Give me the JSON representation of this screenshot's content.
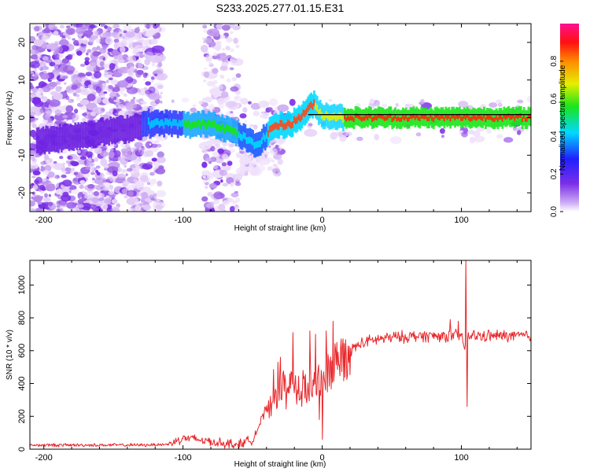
{
  "title": "S233.2025.277.01.15.E31",
  "colors": {
    "snr_line": "#e8262a",
    "ridge_line": "#000000",
    "background": "#ffffff"
  },
  "chart_data": [
    {
      "id": "spectrogram",
      "type": "heatmap",
      "title": "S233.2025.277.01.15.E31",
      "xlabel": "Height of straight line (km)",
      "ylabel": "Frequency (Hz)",
      "xlim": [
        -210,
        150
      ],
      "ylim": [
        -25,
        25
      ],
      "xticks": [
        -200,
        -100,
        0,
        100
      ],
      "xtick_labels": [
        "-200",
        "-100",
        "0",
        "100"
      ],
      "yticks": [
        -20,
        -10,
        0,
        10,
        20
      ],
      "ytick_labels": [
        "-20",
        "-10",
        "0",
        "10",
        "20"
      ],
      "colorbar": {
        "label": "Normalized spectral amplitude",
        "range": [
          0,
          1
        ],
        "ticks": [
          0,
          0.2,
          0.4,
          0.6,
          0.8
        ],
        "tick_labels": [
          "0.0",
          "0.2",
          "0.4",
          "0.6",
          "0.8"
        ],
        "colormap": "rainbow (white-violet-blue-cyan-green-yellow-red-magenta)"
      },
      "ridge": {
        "x": [
          -200,
          -180,
          -160,
          -140,
          -125,
          -110,
          -95,
          -80,
          -65,
          -55,
          -48,
          -42,
          -35,
          -28,
          -22,
          -16,
          -10,
          -6,
          -3,
          0,
          5,
          10,
          15,
          25,
          50,
          80,
          95,
          100,
          105,
          120,
          150
        ],
        "y": [
          -6,
          -5,
          -4,
          -3,
          -1.5,
          -1.5,
          -2,
          -1.5,
          -3.5,
          -5.5,
          -7.5,
          -5.5,
          -2.2,
          -2,
          -1.5,
          0,
          2.5,
          3.5,
          2,
          0.5,
          0.5,
          0.3,
          0,
          0,
          0,
          0,
          0,
          0,
          0,
          0,
          0
        ]
      },
      "reference_line": {
        "x_from": -10,
        "x_to": 150,
        "y": 0.8
      }
    },
    {
      "id": "snr",
      "type": "line",
      "xlabel": "Height of straight line (km)",
      "ylabel": "SNR (10 * v/v)",
      "xlim": [
        -210,
        150
      ],
      "ylim": [
        0,
        1150
      ],
      "xticks": [
        -200,
        -100,
        0,
        100
      ],
      "xtick_labels": [
        "-200",
        "-100",
        "0",
        "100"
      ],
      "yticks": [
        0,
        200,
        400,
        600,
        800,
        1000
      ],
      "ytick_labels": [
        "0",
        "200",
        "400",
        "600",
        "800",
        "1000"
      ],
      "series": [
        {
          "name": "SNR",
          "x": [
            -210,
            -180,
            -150,
            -130,
            -110,
            -100,
            -90,
            -75,
            -60,
            -50,
            -45,
            -40,
            -35,
            -30,
            -25,
            -22,
            -20,
            -15,
            -10,
            -5,
            0,
            5,
            10,
            15,
            20,
            25,
            30,
            40,
            50,
            60,
            70,
            80,
            90,
            95,
            100,
            103,
            105,
            110,
            120,
            130,
            140,
            150
          ],
          "y": [
            25,
            25,
            25,
            25,
            30,
            70,
            60,
            40,
            30,
            60,
            150,
            250,
            320,
            340,
            380,
            380,
            360,
            380,
            370,
            380,
            410,
            470,
            520,
            570,
            600,
            630,
            650,
            670,
            680,
            685,
            690,
            690,
            690,
            690,
            690,
            600,
            690,
            690,
            690,
            690,
            690,
            690
          ]
        }
      ],
      "spikes": [
        {
          "x": -32,
          "y": 530
        },
        {
          "x": -30,
          "y": 560
        },
        {
          "x": -21,
          "y": 710
        },
        {
          "x": -9,
          "y": 720
        },
        {
          "x": -5,
          "y": 700
        },
        {
          "x": 0,
          "y": 60
        },
        {
          "x": 3,
          "y": 720
        },
        {
          "x": 8,
          "y": 780
        },
        {
          "x": 92,
          "y": 790
        },
        {
          "x": 98,
          "y": 780
        },
        {
          "x": 103,
          "y": 1150
        },
        {
          "x": 104,
          "y": 260
        }
      ]
    }
  ]
}
